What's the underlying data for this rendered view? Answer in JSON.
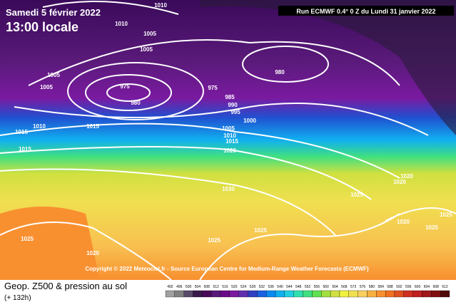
{
  "header": {
    "date": "Samedi 5 février 2022",
    "time": "13:00 locale",
    "run": "Run ECMWF 0.4° 0 Z du Lundi 31 janvier 2022"
  },
  "map": {
    "isobar_labels": [
      1015,
      1010,
      1010,
      1010,
      1005,
      1005,
      1005,
      1005,
      975,
      980,
      975,
      980,
      985,
      990,
      995,
      1000,
      1005,
      1010,
      1015,
      1020,
      1015,
      1020,
      1030,
      1025,
      1025,
      1025,
      1025,
      1020,
      1020,
      1025,
      1025,
      1020,
      1015
    ],
    "copyright": "Copyright © 2022 Meteociel.fr - Source European Centre for Medium-Range Weather Forecasts (ECMWF)"
  },
  "legend": {
    "title": "Geop. Z500 & pression au sol",
    "lead": "(+ 132h)",
    "scale": [
      492,
      496,
      500,
      504,
      508,
      512,
      516,
      520,
      524,
      528,
      532,
      536,
      540,
      544,
      548,
      552,
      556,
      560,
      564,
      568,
      572,
      576,
      580,
      584,
      588,
      592,
      596,
      600,
      604,
      608,
      612
    ],
    "colors": [
      "#a0a0a0",
      "#808080",
      "#5a4a6a",
      "#3a1a4a",
      "#4a0a5a",
      "#5a1a7a",
      "#6a0a8a",
      "#7a1aa0",
      "#6030b0",
      "#3040c0",
      "#1a60e0",
      "#0a8af0",
      "#10b0f0",
      "#20d0e0",
      "#30e0b0",
      "#40e080",
      "#60e050",
      "#a0e040",
      "#d0e040",
      "#f0f040",
      "#f0e050",
      "#f8d060",
      "#f8b040",
      "#f89030",
      "#f07020",
      "#e05020",
      "#d03020",
      "#c02020",
      "#a01818",
      "#801010",
      "#500808"
    ]
  }
}
